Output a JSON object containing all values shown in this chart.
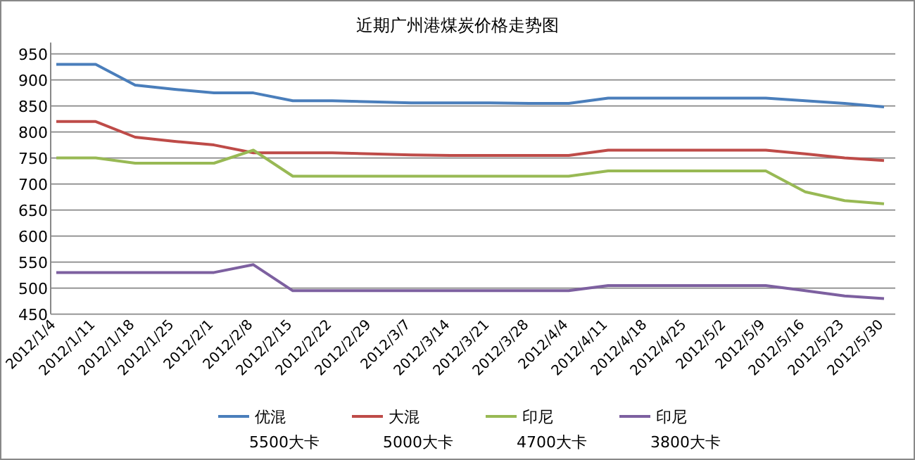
{
  "chart_data": {
    "type": "line",
    "title": "近期广州港煤炭价格走势图",
    "categories": [
      "2012/1/4",
      "2012/1/11",
      "2012/1/18",
      "2012/1/25",
      "2012/2/1",
      "2012/2/8",
      "2012/2/15",
      "2012/2/22",
      "2012/2/29",
      "2012/3/7",
      "2012/3/14",
      "2012/3/21",
      "2012/3/28",
      "2012/4/4",
      "2012/4/11",
      "2012/4/18",
      "2012/4/25",
      "2012/5/2",
      "2012/5/9",
      "2012/5/16",
      "2012/5/23",
      "2012/5/30"
    ],
    "series": [
      {
        "name": "优混 5500大卡",
        "color": "#4a7ebb",
        "values": [
          930,
          930,
          890,
          882,
          875,
          875,
          860,
          860,
          858,
          856,
          856,
          856,
          855,
          855,
          865,
          865,
          865,
          865,
          865,
          860,
          855,
          848
        ]
      },
      {
        "name": "大混 5000大卡",
        "color": "#be4b48",
        "values": [
          820,
          820,
          790,
          782,
          775,
          760,
          760,
          760,
          758,
          756,
          755,
          755,
          755,
          755,
          765,
          765,
          765,
          765,
          765,
          758,
          750,
          745
        ]
      },
      {
        "name": "印尼 4700大卡",
        "color": "#98b954",
        "values": [
          750,
          750,
          740,
          740,
          740,
          765,
          715,
          715,
          715,
          715,
          715,
          715,
          715,
          715,
          725,
          725,
          725,
          725,
          725,
          685,
          668,
          662
        ]
      },
      {
        "name": "印尼 3800大卡",
        "color": "#7d60a0",
        "values": [
          530,
          530,
          530,
          530,
          530,
          545,
          495,
          495,
          495,
          495,
          495,
          495,
          495,
          495,
          505,
          505,
          505,
          505,
          505,
          495,
          485,
          480
        ]
      }
    ],
    "ylim": [
      450,
      950
    ],
    "yticks": [
      450,
      500,
      550,
      600,
      650,
      700,
      750,
      800,
      850,
      900,
      950
    ],
    "grid": "y",
    "legend": "bottom"
  }
}
